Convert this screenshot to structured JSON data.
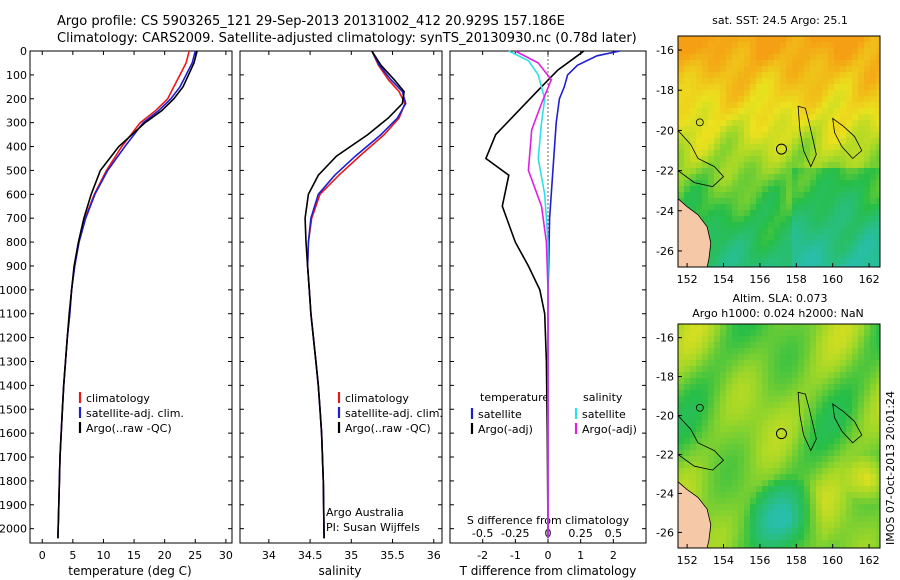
{
  "header": {
    "line1": "Argo profile: CS 5903265_121 29-Sep-2013 20131002_412 20.929S 157.186E",
    "line2": "Climatology: CARS2009. Satellite-adjusted climatology: synTS_20130930.nc (0.78d later)"
  },
  "colors": {
    "climatology": "#e8191b",
    "satellite": "#1f1fd0",
    "argo": "#000000",
    "satellite_s": "#2fe0e8",
    "argo_s": "#e020e0"
  },
  "chart_data": [
    {
      "type": "line",
      "id": "temperature",
      "xlabel": "temperature (deg C)",
      "ylabel": "",
      "xlim": [
        -2,
        31
      ],
      "ylim": [
        2060,
        0
      ],
      "xticks": [
        0,
        5,
        10,
        15,
        20,
        25,
        30
      ],
      "yticks": [
        0,
        100,
        200,
        300,
        400,
        500,
        600,
        700,
        800,
        900,
        1000,
        1100,
        1200,
        1300,
        1400,
        1500,
        1600,
        1700,
        1800,
        1900,
        2000
      ],
      "legend": [
        "climatology",
        "satellite-adj. clim.",
        "Argo(..raw -QC)"
      ],
      "legend_position": "lower-middle",
      "series": [
        {
          "name": "climatology",
          "color": "#e8191b",
          "x": [
            24.0,
            23.5,
            22.5,
            21.5,
            20.5,
            18.5,
            16.0,
            13.0,
            10.5,
            8.5,
            7.0,
            6.0,
            5.3,
            4.8,
            4.5,
            4.1,
            3.8,
            3.5,
            3.3,
            3.1,
            2.9,
            2.7,
            2.55
          ],
          "y": [
            0,
            50,
            100,
            150,
            200,
            250,
            300,
            400,
            500,
            600,
            700,
            800,
            900,
            1000,
            1100,
            1200,
            1300,
            1400,
            1500,
            1600,
            1700,
            1900,
            2040
          ]
        },
        {
          "name": "satellite-adj. clim.",
          "color": "#1f1fd0",
          "x": [
            25.0,
            24.5,
            23.5,
            22.5,
            21.0,
            19.0,
            16.5,
            13.5,
            10.7,
            8.6,
            7.1,
            6.0,
            5.3,
            4.8,
            4.5,
            4.1,
            3.8,
            3.5,
            3.3,
            3.1,
            2.9,
            2.7,
            2.55
          ],
          "y": [
            0,
            50,
            100,
            150,
            200,
            250,
            300,
            400,
            500,
            600,
            700,
            800,
            900,
            1000,
            1100,
            1200,
            1300,
            1400,
            1500,
            1600,
            1700,
            1900,
            2040
          ]
        },
        {
          "name": "Argo(..raw -QC)",
          "color": "#000000",
          "x": [
            25.3,
            24.8,
            23.9,
            23.0,
            21.5,
            19.5,
            16.8,
            12.5,
            9.5,
            8.0,
            6.8,
            5.9,
            5.2,
            4.8,
            4.4,
            4.1,
            3.8,
            3.5,
            3.3,
            3.1,
            2.9,
            2.7,
            2.55
          ],
          "y": [
            0,
            50,
            100,
            150,
            200,
            250,
            300,
            400,
            500,
            600,
            700,
            800,
            900,
            1000,
            1100,
            1200,
            1300,
            1400,
            1500,
            1600,
            1700,
            1900,
            2040
          ]
        }
      ]
    },
    {
      "type": "line",
      "id": "salinity",
      "xlabel": "salinity",
      "ylabel": "",
      "xlim": [
        33.65,
        36.1
      ],
      "ylim": [
        2060,
        0
      ],
      "xticks": [
        34,
        34.5,
        35,
        35.5,
        36
      ],
      "legend": [
        "climatology",
        "satellite-adj. clim.",
        "Argo(..raw -QC)"
      ],
      "legend_position": "lower-right",
      "annotation": [
        "Argo Australia",
        "PI: Susan Wijffels"
      ],
      "series": [
        {
          "name": "climatology",
          "color": "#e8191b",
          "x": [
            35.25,
            35.33,
            35.45,
            35.58,
            35.65,
            35.58,
            35.4,
            35.1,
            34.85,
            34.62,
            34.52,
            34.48,
            34.47,
            34.49,
            34.51,
            34.54,
            34.57,
            34.6,
            34.62,
            34.64,
            34.66,
            34.67
          ],
          "y": [
            0,
            60,
            120,
            170,
            220,
            280,
            350,
            440,
            520,
            600,
            700,
            800,
            900,
            1000,
            1100,
            1200,
            1300,
            1400,
            1500,
            1600,
            1800,
            2040
          ]
        },
        {
          "name": "satellite-adj. clim.",
          "color": "#1f1fd0",
          "x": [
            35.25,
            35.34,
            35.48,
            35.62,
            35.66,
            35.56,
            35.36,
            35.05,
            34.8,
            34.6,
            34.51,
            34.48,
            34.47,
            34.49,
            34.51,
            34.54,
            34.57,
            34.6,
            34.62,
            34.64,
            34.66,
            34.67
          ],
          "y": [
            0,
            60,
            120,
            170,
            220,
            280,
            350,
            440,
            520,
            600,
            700,
            800,
            900,
            1000,
            1100,
            1200,
            1300,
            1400,
            1500,
            1600,
            1800,
            2040
          ]
        },
        {
          "name": "Argo(..raw -QC)",
          "color": "#000000",
          "x": [
            35.25,
            35.36,
            35.52,
            35.64,
            35.62,
            35.45,
            35.2,
            34.82,
            34.6,
            34.48,
            34.44,
            34.45,
            34.47,
            34.49,
            34.51,
            34.54,
            34.57,
            34.6,
            34.62,
            34.64,
            34.66,
            34.67
          ],
          "y": [
            0,
            60,
            120,
            170,
            220,
            280,
            350,
            440,
            520,
            600,
            700,
            800,
            900,
            1000,
            1100,
            1200,
            1300,
            1400,
            1500,
            1600,
            1800,
            2040
          ]
        }
      ]
    },
    {
      "type": "line",
      "id": "differences",
      "xlabel": "T difference from climatology",
      "xlabel_top": "S difference from climatology",
      "ylabel": "",
      "xlim": [
        -3.0,
        3.0
      ],
      "ylim": [
        2060,
        0
      ],
      "xticks": [
        -2,
        -1,
        0,
        1,
        2
      ],
      "xticks_s": [
        "-0.5",
        "-0.25",
        "0",
        "0.25",
        "0.5"
      ],
      "xticks_s_values": [
        -2,
        -1,
        0,
        1,
        2
      ],
      "legend_temperature": {
        "title": "temperature",
        "entries": [
          "satellite",
          "Argo(-adj)"
        ]
      },
      "legend_salinity": {
        "title": "salinity",
        "entries": [
          "satellite",
          "Argo(-adj)"
        ]
      },
      "series": [
        {
          "name": "temperature satellite",
          "color": "#1f1fd0",
          "x": [
            2.2,
            1.5,
            0.9,
            0.6,
            0.5,
            0.35,
            0.25,
            0.15,
            0.05,
            0.02,
            0.0,
            0.0,
            0.0,
            0.0,
            0.0,
            0.0
          ],
          "y": [
            0,
            20,
            60,
            100,
            150,
            200,
            300,
            500,
            700,
            900,
            1000,
            1200,
            1400,
            1600,
            1800,
            2040
          ]
        },
        {
          "name": "temperature Argo(-adj)",
          "color": "#000000",
          "x": [
            1.1,
            0.8,
            0.3,
            -0.2,
            -0.9,
            -1.6,
            -1.9,
            -1.2,
            -1.4,
            -1.0,
            -0.6,
            -0.25,
            -0.1,
            -0.05,
            -0.02,
            0.0
          ],
          "y": [
            0,
            30,
            80,
            150,
            250,
            350,
            450,
            520,
            650,
            800,
            900,
            1000,
            1100,
            1300,
            1600,
            2040
          ]
        },
        {
          "name": "salinity satellite",
          "color": "#2fe0e8",
          "x": [
            -1.2,
            -0.6,
            -0.3,
            -0.1,
            -0.2,
            -0.3,
            -0.1,
            0.0,
            0.0,
            0.0,
            0.0,
            0.0
          ],
          "y": [
            0,
            40,
            100,
            200,
            300,
            450,
            600,
            800,
            1000,
            1300,
            1600,
            2040
          ]
        },
        {
          "name": "salinity Argo(-adj)",
          "color": "#e020e0",
          "x": [
            -1.0,
            -0.3,
            0.1,
            -0.2,
            -0.5,
            -0.6,
            -0.2,
            -0.05,
            0.0,
            0.0,
            0.0,
            0.0
          ],
          "y": [
            0,
            50,
            120,
            220,
            330,
            500,
            650,
            800,
            1000,
            1300,
            1600,
            2040
          ]
        }
      ]
    },
    {
      "type": "heatmap",
      "id": "map_sst",
      "title": "sat. SST: 24.5 Argo: 25.1",
      "xticks": [
        152,
        154,
        156,
        158,
        160,
        162
      ],
      "yticks": [
        -16,
        -18,
        -20,
        -22,
        -24,
        -26
      ],
      "xlim": [
        151.5,
        162.6
      ],
      "ylim": [
        -26.8,
        -15.3
      ],
      "marker": {
        "lon": 157.186,
        "lat": -20.929
      }
    },
    {
      "type": "heatmap",
      "id": "map_sla",
      "title": "Altim. SLA: 0.073",
      "subtitle": "Argo h1000: 0.024 h2000: NaN",
      "xticks": [
        152,
        154,
        156,
        158,
        160,
        162
      ],
      "yticks": [
        -16,
        -18,
        -20,
        -22,
        -24,
        -26
      ],
      "xlim": [
        151.5,
        162.6
      ],
      "ylim": [
        -26.8,
        -15.3
      ],
      "marker": {
        "lon": 157.186,
        "lat": -20.929
      }
    }
  ],
  "side_stamp": "IMOS 07-Oct-2013 20:01:24"
}
